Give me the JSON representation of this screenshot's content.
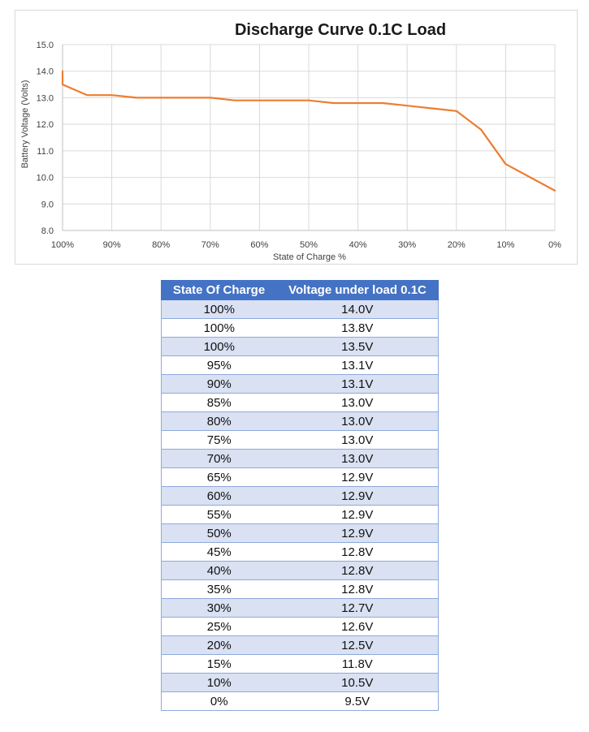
{
  "chart_data": {
    "type": "line",
    "title": "Discharge Curve 0.1C Load",
    "xlabel": "State of Charge %",
    "ylabel": "Battery Voltage (Volts)",
    "ylim": [
      8.0,
      15.0
    ],
    "xlim": [
      100,
      0
    ],
    "x_ticks": [
      "100%",
      "90%",
      "80%",
      "70%",
      "60%",
      "50%",
      "40%",
      "30%",
      "20%",
      "10%",
      "0%"
    ],
    "y_ticks": [
      "15.0",
      "14.0",
      "13.0",
      "12.0",
      "11.0",
      "10.0",
      "9.0",
      "8.0"
    ],
    "grid": true,
    "line_color": "#ed7d31",
    "series": [
      {
        "name": "Voltage under load 0.1C",
        "x": [
          100,
          100,
          100,
          95,
          90,
          85,
          80,
          75,
          70,
          65,
          60,
          55,
          50,
          45,
          40,
          35,
          30,
          25,
          20,
          15,
          10,
          0
        ],
        "values": [
          14.0,
          13.8,
          13.5,
          13.1,
          13.1,
          13.0,
          13.0,
          13.0,
          13.0,
          12.9,
          12.9,
          12.9,
          12.9,
          12.8,
          12.8,
          12.8,
          12.7,
          12.6,
          12.5,
          11.8,
          10.5,
          9.5
        ]
      }
    ]
  },
  "table": {
    "headers": [
      "State Of Charge",
      "Voltage under load 0.1C"
    ],
    "rows": [
      [
        "100%",
        "14.0V"
      ],
      [
        "100%",
        "13.8V"
      ],
      [
        "100%",
        "13.5V"
      ],
      [
        "95%",
        "13.1V"
      ],
      [
        "90%",
        "13.1V"
      ],
      [
        "85%",
        "13.0V"
      ],
      [
        "80%",
        "13.0V"
      ],
      [
        "75%",
        "13.0V"
      ],
      [
        "70%",
        "13.0V"
      ],
      [
        "65%",
        "12.9V"
      ],
      [
        "60%",
        "12.9V"
      ],
      [
        "55%",
        "12.9V"
      ],
      [
        "50%",
        "12.9V"
      ],
      [
        "45%",
        "12.8V"
      ],
      [
        "40%",
        "12.8V"
      ],
      [
        "35%",
        "12.8V"
      ],
      [
        "30%",
        "12.7V"
      ],
      [
        "25%",
        "12.6V"
      ],
      [
        "20%",
        "12.5V"
      ],
      [
        "15%",
        "11.8V"
      ],
      [
        "10%",
        "10.5V"
      ],
      [
        "0%",
        "9.5V"
      ]
    ]
  }
}
